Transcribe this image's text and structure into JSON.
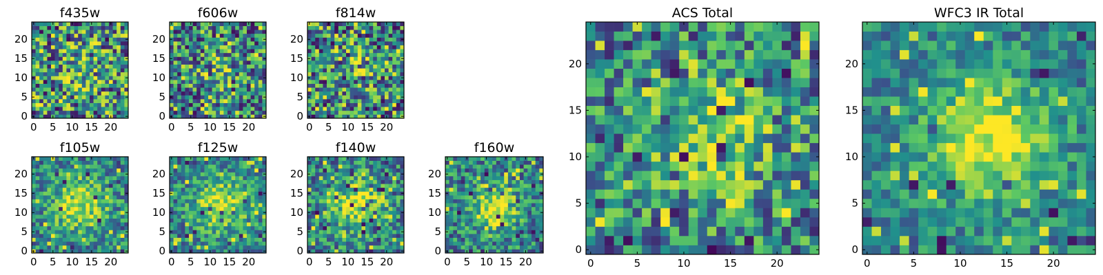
{
  "figure": {
    "colormap": "viridis",
    "colors": {
      "viridis_stops": [
        "#440154",
        "#3b528b",
        "#21918c",
        "#5ec962",
        "#fde725"
      ],
      "axes_frame": "#000000",
      "background": "#ffffff"
    }
  },
  "chart_data": [
    {
      "id": "f435w",
      "type": "heatmap",
      "title": "f435w",
      "grid_size": 25,
      "x_ticks": [
        "0",
        "5",
        "10",
        "15",
        "20"
      ],
      "y_ticks": [
        "0",
        "5",
        "10",
        "15",
        "20"
      ],
      "seed": 11,
      "noise": 0.9,
      "blob": {
        "cx": 12,
        "cy": 12,
        "sigma": 7,
        "amp": 0.15
      },
      "dark_fraction": 0.05,
      "bright_fraction": 0.08,
      "value_range": [
        0,
        1
      ]
    },
    {
      "id": "f606w",
      "type": "heatmap",
      "title": "f606w",
      "grid_size": 25,
      "x_ticks": [
        "0",
        "5",
        "10",
        "15",
        "20"
      ],
      "y_ticks": [
        "0",
        "5",
        "10",
        "15",
        "20"
      ],
      "seed": 23,
      "noise": 0.85,
      "blob": {
        "cx": 13,
        "cy": 11,
        "sigma": 4,
        "amp": 0.25
      },
      "dark_fraction": 0.05,
      "bright_fraction": 0.07,
      "value_range": [
        0,
        1
      ]
    },
    {
      "id": "f814w",
      "type": "heatmap",
      "title": "f814w",
      "grid_size": 25,
      "x_ticks": [
        "0",
        "5",
        "10",
        "15",
        "20"
      ],
      "y_ticks": [
        "0",
        "5",
        "10",
        "15",
        "20"
      ],
      "seed": 37,
      "noise": 0.85,
      "blob": {
        "cx": 13,
        "cy": 12,
        "sigma": 4,
        "amp": 0.25
      },
      "dark_fraction": 0.06,
      "bright_fraction": 0.07,
      "value_range": [
        0,
        1
      ]
    },
    {
      "id": "f105w",
      "type": "heatmap",
      "title": "f105w",
      "grid_size": 25,
      "x_ticks": [
        "0",
        "5",
        "10",
        "15",
        "20"
      ],
      "y_ticks": [
        "0",
        "5",
        "10",
        "15",
        "20"
      ],
      "seed": 41,
      "noise": 0.55,
      "blob": {
        "cx": 12,
        "cy": 12,
        "sigma": 5,
        "amp": 0.45
      },
      "dark_fraction": 0.03,
      "bright_fraction": 0.05,
      "value_range": [
        0,
        1
      ]
    },
    {
      "id": "f125w",
      "type": "heatmap",
      "title": "f125w",
      "grid_size": 25,
      "x_ticks": [
        "0",
        "5",
        "10",
        "15",
        "20"
      ],
      "y_ticks": [
        "0",
        "5",
        "10",
        "15",
        "20"
      ],
      "seed": 53,
      "noise": 0.55,
      "blob": {
        "cx": 13,
        "cy": 12,
        "sigma": 5,
        "amp": 0.45
      },
      "dark_fraction": 0.04,
      "bright_fraction": 0.05,
      "value_range": [
        0,
        1
      ]
    },
    {
      "id": "f140w",
      "type": "heatmap",
      "title": "f140w",
      "grid_size": 25,
      "x_ticks": [
        "0",
        "5",
        "10",
        "15",
        "20"
      ],
      "y_ticks": [
        "0",
        "5",
        "10",
        "15",
        "20"
      ],
      "seed": 67,
      "noise": 0.6,
      "blob": {
        "cx": 13,
        "cy": 12,
        "sigma": 5,
        "amp": 0.45
      },
      "dark_fraction": 0.05,
      "bright_fraction": 0.05,
      "value_range": [
        0,
        1
      ]
    },
    {
      "id": "f160w",
      "type": "heatmap",
      "title": "f160w",
      "grid_size": 25,
      "x_ticks": [
        "0",
        "5",
        "10",
        "15",
        "20"
      ],
      "y_ticks": [
        "0",
        "5",
        "10",
        "15",
        "20"
      ],
      "seed": 79,
      "noise": 0.6,
      "blob": {
        "cx": 12,
        "cy": 11,
        "sigma": 4,
        "amp": 0.5
      },
      "dark_fraction": 0.05,
      "bright_fraction": 0.04,
      "value_range": [
        0,
        1
      ]
    },
    {
      "id": "acs-total",
      "type": "heatmap",
      "title": "ACS Total",
      "grid_size": 25,
      "x_ticks": [
        "0",
        "5",
        "10",
        "15",
        "20"
      ],
      "y_ticks": [
        "0",
        "5",
        "10",
        "15",
        "20"
      ],
      "seed": 97,
      "noise": 0.7,
      "blob": {
        "cx": 13,
        "cy": 12,
        "sigma": 5,
        "amp": 0.35
      },
      "dark_fraction": 0.05,
      "bright_fraction": 0.04,
      "value_range": [
        0,
        1
      ]
    },
    {
      "id": "wfc3-ir-total",
      "type": "heatmap",
      "title": "WFC3 IR Total",
      "grid_size": 25,
      "x_ticks": [
        "0",
        "5",
        "10",
        "15",
        "20"
      ],
      "y_ticks": [
        "0",
        "5",
        "10",
        "15",
        "20"
      ],
      "seed": 113,
      "noise": 0.45,
      "blob": {
        "cx": 13,
        "cy": 12,
        "sigma": 4.5,
        "amp": 0.55
      },
      "dark_fraction": 0.03,
      "bright_fraction": 0.03,
      "value_range": [
        0,
        1
      ]
    }
  ]
}
